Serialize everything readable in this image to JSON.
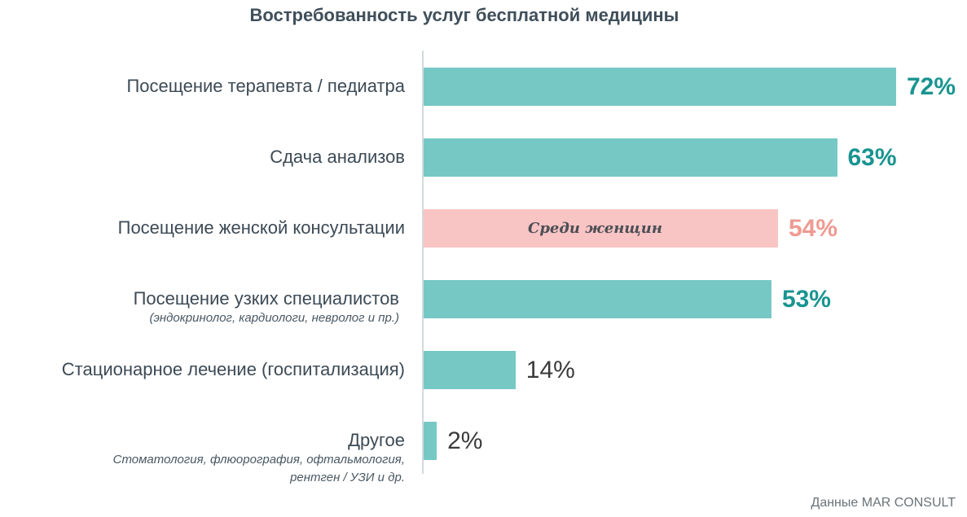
{
  "chart_data": {
    "type": "bar",
    "orientation": "horizontal",
    "title": "Востребованность услуг бесплатной медицины",
    "categories": [
      {
        "label": "Посещение терапевта / педиатра",
        "sublabel": "",
        "value": 72,
        "value_label": "72%",
        "color": "#76c8c5",
        "label_color": "#199490",
        "label_bold": true
      },
      {
        "label": "Сдача анализов",
        "sublabel": "",
        "value": 63,
        "value_label": "63%",
        "color": "#76c8c5",
        "label_color": "#199490",
        "label_bold": true
      },
      {
        "label": "Посещение женской консультации",
        "sublabel": "",
        "value": 54,
        "value_label": "54%",
        "color": "#f9c4c4",
        "label_color": "#ef9a92",
        "label_bold": true,
        "note": "Среди женщин"
      },
      {
        "label": "Посещение узких специалистов",
        "sublabel": "(эндокринолог, кардиологи, невролог и пр.)",
        "value": 53,
        "value_label": "53%",
        "color": "#76c8c5",
        "label_color": "#199490",
        "label_bold": true
      },
      {
        "label": "Стационарное лечение (госпитализация)",
        "sublabel": "",
        "value": 14,
        "value_label": "14%",
        "color": "#76c8c5",
        "label_color": "#3a3a3a",
        "label_bold": false
      },
      {
        "label": "Другое",
        "sublabel": "Стоматология, флюорография, офтальмология,\nрентген / УЗИ и др.",
        "value": 2,
        "value_label": "2%",
        "color": "#76c8c5",
        "label_color": "#3a3a3a",
        "label_bold": false
      }
    ],
    "unit": "%",
    "xlim": [
      0,
      100
    ],
    "grid": false,
    "source": "Данные MAR CONSULT"
  }
}
